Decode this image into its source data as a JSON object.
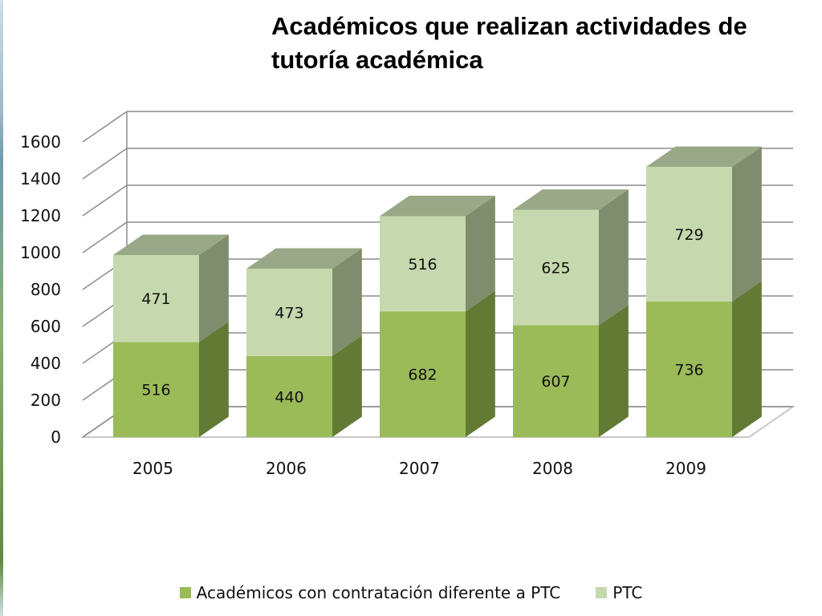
{
  "chart_data": {
    "type": "bar",
    "stacked": true,
    "style": "3d-column",
    "title": "Académicos que realizan actividades de tutoría académica",
    "title_lines": [
      "Académicos que realizan actividades de",
      "tutoría académica"
    ],
    "categories": [
      "2005",
      "2006",
      "2007",
      "2008",
      "2009"
    ],
    "series": [
      {
        "name": "Académicos con contratación diferente a PTC",
        "values": [
          516,
          440,
          682,
          607,
          736
        ],
        "color": "#9bbb59"
      },
      {
        "name": "PTC",
        "values": [
          471,
          473,
          516,
          625,
          729
        ],
        "color": "#c6d9ae"
      }
    ],
    "ylim": [
      0,
      1600
    ],
    "yticks": [
      "0",
      "200",
      "400",
      "600",
      "800",
      "1000",
      "1200",
      "1400",
      "1600"
    ],
    "grid": true,
    "legend_position": "bottom"
  }
}
